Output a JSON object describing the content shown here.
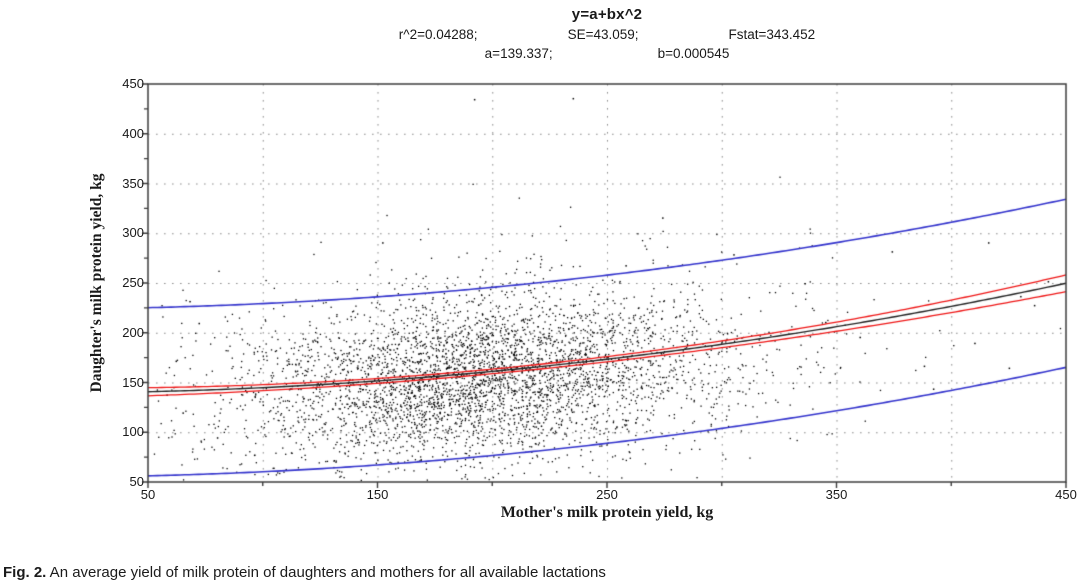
{
  "header": {
    "title": "y=a+bx^2",
    "stats_row": [
      "r^2=0.04288;",
      "SE=43.059;",
      "Fstat=343.452"
    ],
    "params_row": [
      "a=139.337;",
      "b=0.000545"
    ]
  },
  "chart_data": {
    "type": "scatter",
    "title": "y=a+bx^2",
    "subtitle_stats": "r^2=0.04288;  SE=43.059;  Fstat=343.452  a=139.337;  b=0.000545",
    "xlabel": "Mother's milk protein yield, kg",
    "ylabel": "Daughter's milk protein yield, kg",
    "xlim": [
      50,
      450
    ],
    "ylim": [
      50,
      450
    ],
    "x_major_ticks": [
      50,
      150,
      250,
      350,
      450
    ],
    "x_minor_ticks": [
      100,
      200,
      300,
      400
    ],
    "y_major_ticks": [
      50,
      100,
      150,
      200,
      250,
      300,
      350,
      400,
      450
    ],
    "y_minor_step": 25,
    "grid": {
      "show": true,
      "step": 50,
      "style": "dotted",
      "color": "#8c8c8c"
    },
    "fit_curve": {
      "label": "y = a + b*x^2",
      "a": 139.337,
      "b": 0.000545,
      "color": "#1f1f1f"
    },
    "confidence_band": {
      "base_half_width": 2.3,
      "curvature": 9e-05,
      "center_x": 190,
      "color": "#ee1414"
    },
    "prediction_band": {
      "half_width": 84.5,
      "color": "#3333cc"
    },
    "scatter_cloud": {
      "n": 4200,
      "mean_x": 195,
      "sd_x": 50,
      "mean_y": 156,
      "sd_y": 40,
      "corr": 0.21,
      "wide_fraction": 0.18,
      "wide_scale": 1.6,
      "seed": 20240214,
      "point_color": "#000000"
    },
    "outlier_points": [
      [
        192,
        435
      ],
      [
        235,
        436
      ],
      [
        152,
        291
      ],
      [
        274,
        316
      ],
      [
        305,
        279
      ],
      [
        258,
        268
      ],
      [
        374,
        282
      ],
      [
        416,
        291
      ],
      [
        430,
        237
      ],
      [
        442,
        252
      ],
      [
        388,
        167
      ],
      [
        392,
        144
      ],
      [
        360,
        196
      ],
      [
        345,
        211
      ],
      [
        336,
        250
      ],
      [
        410,
        190
      ],
      [
        425,
        165
      ],
      [
        436,
        228
      ],
      [
        62,
        172
      ],
      [
        58,
        138
      ],
      [
        65,
        120
      ],
      [
        72,
        210
      ],
      [
        80,
        95
      ],
      [
        68,
        232
      ]
    ],
    "legend": {
      "show": false
    }
  },
  "caption": {
    "label": "Fig. 2.",
    "text": " An average yield of milk protein of daughters and mothers for all available lactations"
  }
}
